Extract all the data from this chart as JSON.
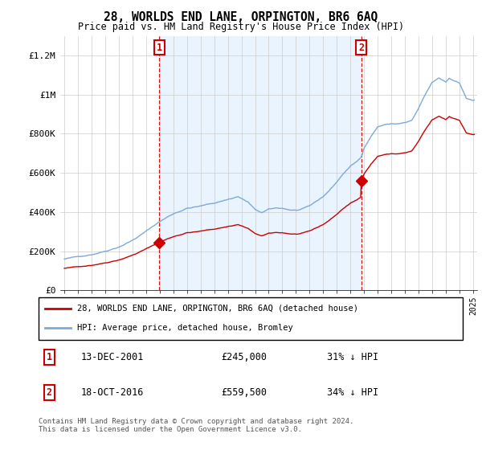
{
  "title": "28, WORLDS END LANE, ORPINGTON, BR6 6AQ",
  "subtitle": "Price paid vs. HM Land Registry's House Price Index (HPI)",
  "ylim": [
    0,
    1300000
  ],
  "yticks": [
    0,
    200000,
    400000,
    600000,
    800000,
    1000000,
    1200000
  ],
  "ytick_labels": [
    "£0",
    "£200K",
    "£400K",
    "£600K",
    "£800K",
    "£1M",
    "£1.2M"
  ],
  "legend_line1": "28, WORLDS END LANE, ORPINGTON, BR6 6AQ (detached house)",
  "legend_line2": "HPI: Average price, detached house, Bromley",
  "annotation1_date": "13-DEC-2001",
  "annotation1_price": "£245,000",
  "annotation1_hpi": "31% ↓ HPI",
  "annotation2_date": "18-OCT-2016",
  "annotation2_price": "£559,500",
  "annotation2_hpi": "34% ↓ HPI",
  "footer": "Contains HM Land Registry data © Crown copyright and database right 2024.\nThis data is licensed under the Open Government Licence v3.0.",
  "sale_color": "#cc0000",
  "hpi_color": "#7aaadd",
  "hpi_fill_color": "#ddeeff",
  "annotation_color": "#cc0000",
  "background_color": "#ffffff",
  "grid_color": "#cccccc",
  "sale1_year": 2001.96,
  "sale1_price": 245000,
  "sale2_year": 2016.79,
  "sale2_price": 559500
}
